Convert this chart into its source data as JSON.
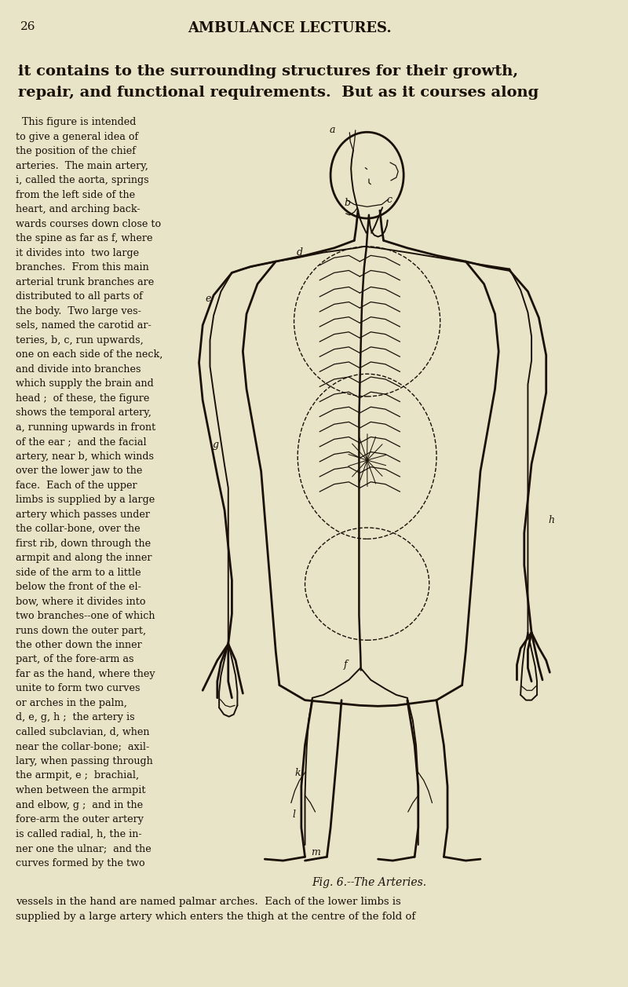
{
  "bg_color": "#e8e4c8",
  "page_num": "26",
  "header": "AMBULANCE LECTURES.",
  "top_text_line1": "it contains to the surrounding structures for their growth,",
  "top_text_line2": "repair, and functional requirements.  But as it courses along",
  "left_column_text": [
    "  This figure is intended",
    "to give a general idea of",
    "the position of the chief",
    "arteries.  The main artery,",
    "i, called the aorta, springs",
    "from the left side of the",
    "heart, and arching back-",
    "wards courses down close to",
    "the spine as far as f, where",
    "it divides into  two large",
    "branches.  From this main",
    "arterial trunk branches are",
    "distributed to all parts of",
    "the body.  Two large ves-",
    "sels, named the carotid ar-",
    "teries, b, c, run upwards,",
    "one on each side of the neck,",
    "and divide into branches",
    "which supply the brain and",
    "head ;  of these, the figure",
    "shows the temporal artery,",
    "a, running upwards in front",
    "of the ear ;  and the facial",
    "artery, near b, which winds",
    "over the lower jaw to the",
    "face.  Each of the upper",
    "limbs is supplied by a large",
    "artery which passes under",
    "the collar-bone, over the",
    "first rib, down through the",
    "armpit and along the inner",
    "side of the arm to a little",
    "below the front of the el-",
    "bow, where it divides into",
    "two branches--one of which",
    "runs down the outer part,",
    "the other down the inner",
    "part, of the fore-arm as",
    "far as the hand, where they",
    "unite to form two curves",
    "or arches in the palm,",
    "d, e, g, h ;  the artery is",
    "called subclavian, d, when",
    "near the collar-bone;  axil-",
    "lary, when passing through",
    "the armpit, e ;  brachial,",
    "when between the armpit",
    "and elbow, g ;  and in the",
    "fore-arm the outer artery",
    "is called radial, h, the in-",
    "ner one the ulnar;  and the",
    "curves formed by the two"
  ],
  "bottom_text_line1": "vessels in the hand are named palmar arches.  Each of the lower limbs is",
  "bottom_text_line2": "supplied by a large artery which enters the thigh at the centre of the fold of",
  "caption": "Fig. 6.--The Arteries.",
  "text_color": "#1a1008",
  "lc": "#1a1008",
  "lw_body": 2.0,
  "lw_art": 1.4,
  "lw_thin": 0.9,
  "fx0": 270,
  "fx1": 775,
  "fy0": 160,
  "fy1": 1115
}
